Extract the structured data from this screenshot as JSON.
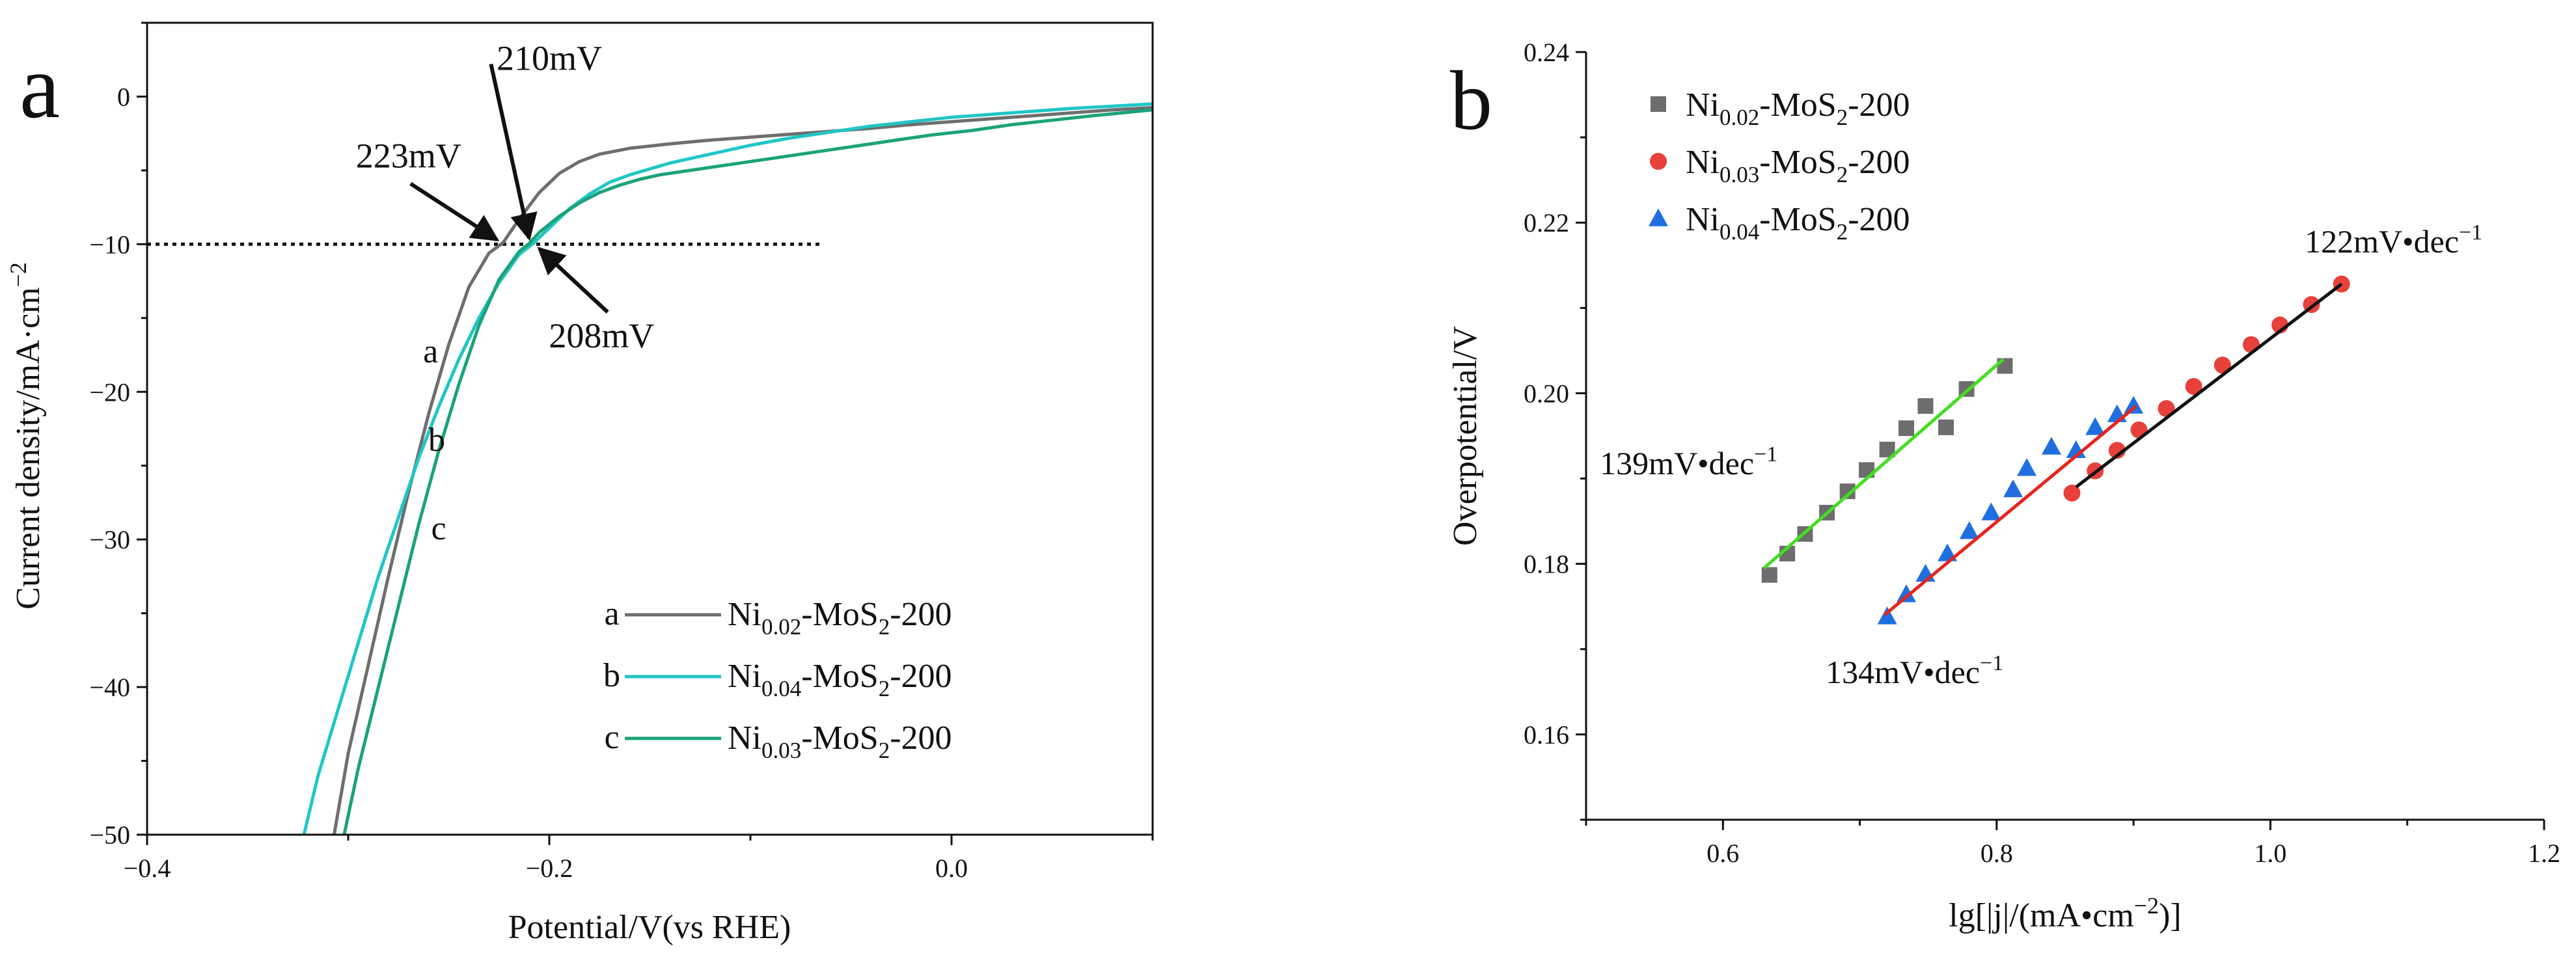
{
  "chart_data": [
    {
      "panel": "a",
      "type": "line",
      "xlabel": "Potential/V(vs RHE)",
      "ylabel": "Current density/mA·cm",
      "ylabel_sup": "−2",
      "xlim": [
        -0.4,
        0.1
      ],
      "ylim": [
        -50,
        5
      ],
      "xticks": [
        -0.4,
        -0.2,
        0.0
      ],
      "xtick_labels": [
        "−0.4",
        "−0.2",
        "0.0"
      ],
      "yticks": [
        0,
        -10,
        -20,
        -30,
        -40,
        -50
      ],
      "ytick_labels": [
        "0",
        "−10",
        "−20",
        "−30",
        "−40",
        "−50"
      ],
      "reference_line": {
        "y": -10,
        "x_start": -0.4,
        "x_end": -0.065,
        "style": "dotted"
      },
      "series": [
        {
          "id": "a",
          "name": "Ni",
          "sub": "0.02",
          "suffix": "-MoS",
          "sub2": "2",
          "tail": "-200",
          "color": "#6e6e6e",
          "x": [
            -0.307,
            -0.3,
            -0.29,
            -0.28,
            -0.27,
            -0.26,
            -0.25,
            -0.24,
            -0.23,
            -0.223,
            -0.215,
            -0.205,
            -0.195,
            -0.185,
            -0.175,
            -0.16,
            -0.14,
            -0.12,
            -0.1,
            -0.08,
            -0.06,
            -0.04,
            -0.02,
            0.0,
            0.02,
            0.04,
            0.06,
            0.08,
            0.1
          ],
          "y": [
            -50.0,
            -44.5,
            -38.5,
            -32.5,
            -26.8,
            -21.5,
            -16.8,
            -12.9,
            -10.6,
            -9.9,
            -8.3,
            -6.5,
            -5.2,
            -4.4,
            -3.9,
            -3.5,
            -3.2,
            -2.95,
            -2.75,
            -2.55,
            -2.35,
            -2.15,
            -1.9,
            -1.7,
            -1.5,
            -1.3,
            -1.1,
            -0.9,
            -0.75
          ]
        },
        {
          "id": "b",
          "name": "Ni",
          "sub": "0.04",
          "suffix": "-MoS",
          "sub2": "2",
          "tail": "-200",
          "color": "#20c6c6",
          "x": [
            -0.322,
            -0.315,
            -0.305,
            -0.295,
            -0.285,
            -0.275,
            -0.265,
            -0.255,
            -0.245,
            -0.235,
            -0.225,
            -0.215,
            -0.208,
            -0.2,
            -0.19,
            -0.18,
            -0.17,
            -0.16,
            -0.15,
            -0.14,
            -0.12,
            -0.1,
            -0.08,
            -0.06,
            -0.04,
            -0.02,
            0.0,
            0.02,
            0.04,
            0.06,
            0.08,
            0.1
          ],
          "y": [
            -50.0,
            -46.0,
            -41.5,
            -37.0,
            -32.5,
            -28.5,
            -24.5,
            -21.0,
            -17.8,
            -15.0,
            -12.6,
            -10.7,
            -9.95,
            -8.9,
            -7.6,
            -6.6,
            -5.8,
            -5.3,
            -4.9,
            -4.5,
            -3.9,
            -3.3,
            -2.8,
            -2.4,
            -2.0,
            -1.7,
            -1.4,
            -1.2,
            -1.0,
            -0.8,
            -0.65,
            -0.5
          ]
        },
        {
          "id": "c",
          "name": "Ni",
          "sub": "0.03",
          "suffix": "-MoS",
          "sub2": "2",
          "tail": "-200",
          "color": "#1aa37a",
          "x": [
            -0.302,
            -0.295,
            -0.285,
            -0.275,
            -0.265,
            -0.255,
            -0.245,
            -0.235,
            -0.225,
            -0.215,
            -0.21,
            -0.205,
            -0.195,
            -0.185,
            -0.175,
            -0.165,
            -0.155,
            -0.145,
            -0.13,
            -0.11,
            -0.09,
            -0.07,
            -0.05,
            -0.03,
            -0.01,
            0.01,
            0.03,
            0.05,
            0.07,
            0.1
          ],
          "y": [
            -50.0,
            -45.5,
            -40.0,
            -34.5,
            -29.0,
            -24.0,
            -19.5,
            -15.5,
            -12.4,
            -10.5,
            -9.95,
            -9.2,
            -8.1,
            -7.2,
            -6.5,
            -6.0,
            -5.6,
            -5.3,
            -5.0,
            -4.6,
            -4.2,
            -3.8,
            -3.4,
            -3.0,
            -2.6,
            -2.3,
            -1.9,
            -1.6,
            -1.3,
            -0.9
          ]
        }
      ],
      "curve_labels": [
        {
          "text": "a",
          "x": -0.259,
          "y": -18
        },
        {
          "text": "b",
          "x": -0.256,
          "y": -24
        },
        {
          "text": "c",
          "x": -0.255,
          "y": -30
        }
      ],
      "annotations": [
        {
          "text": "210mV",
          "x": -0.2,
          "y": 1.8,
          "arrow_from": [
            -0.229,
            2.2
          ],
          "arrow_to": [
            -0.21,
            -9.6
          ]
        },
        {
          "text": "223mV",
          "x": -0.27,
          "y": -4.8,
          "arrow_from": [
            -0.269,
            -5.9
          ],
          "arrow_to": [
            -0.226,
            -9.7
          ]
        },
        {
          "text": "208mV",
          "x": -0.174,
          "y": -17.0,
          "arrow_from": [
            -0.171,
            -14.6
          ],
          "arrow_to": [
            -0.205,
            -10.3
          ]
        }
      ],
      "panel_label": "a"
    },
    {
      "panel": "b",
      "type": "scatter",
      "xlabel": "lg[|j|/(mA•cm",
      "xlabel_sup": "−2",
      "xlabel_tail": ")]",
      "ylabel": "Overpotential/V",
      "xlim": [
        0.5,
        1.2
      ],
      "ylim": [
        0.15,
        0.24
      ],
      "xticks": [
        0.6,
        0.8,
        1.0,
        1.2
      ],
      "xtick_labels": [
        "0.6",
        "0.8",
        "1.0",
        "1.2"
      ],
      "yticks": [
        0.16,
        0.18,
        0.2,
        0.22,
        0.24
      ],
      "ytick_labels": [
        "0.16",
        "0.18",
        "0.20",
        "0.22",
        "0.24"
      ],
      "series": [
        {
          "name": "Ni",
          "sub": "0.02",
          "suffix": "-MoS",
          "sub2": "2",
          "tail": "-200",
          "marker": "square",
          "color": "#6d6d6d",
          "fit_color": "#44dd22",
          "fit": {
            "x0": 0.63,
            "y0": 0.1795,
            "x1": 0.805,
            "y1": 0.204
          },
          "x": [
            0.634,
            0.647,
            0.66,
            0.676,
            0.691,
            0.705,
            0.72,
            0.734,
            0.748,
            0.763,
            0.778,
            0.806
          ],
          "y": [
            0.1787,
            0.1812,
            0.1835,
            0.186,
            0.1885,
            0.191,
            0.1934,
            0.1959,
            0.1985,
            0.196,
            0.2005,
            0.2032
          ]
        },
        {
          "name": "Ni",
          "sub": "0.03",
          "suffix": "-MoS",
          "sub2": "2",
          "tail": "-200",
          "marker": "circle",
          "color": "#e8403a",
          "fit_color": "#111111",
          "fit": {
            "x0": 0.858,
            "y0": 0.189,
            "x1": 1.052,
            "y1": 0.2128
          },
          "x": [
            0.855,
            0.872,
            0.888,
            0.904,
            0.924,
            0.944,
            0.965,
            0.986,
            1.007,
            1.03,
            1.052
          ],
          "y": [
            0.1883,
            0.1909,
            0.1933,
            0.1957,
            0.1982,
            0.2008,
            0.2033,
            0.2057,
            0.208,
            0.2104,
            0.2128
          ]
        },
        {
          "name": "Ni",
          "sub": "0.04",
          "suffix": "-MoS",
          "sub2": "2",
          "tail": "-200",
          "marker": "triangle",
          "color": "#1f6fe0",
          "fit_color": "#e8241c",
          "fit": {
            "x0": 0.718,
            "y0": 0.174,
            "x1": 0.902,
            "y1": 0.1985
          },
          "x": [
            0.72,
            0.734,
            0.748,
            0.764,
            0.78,
            0.796,
            0.812,
            0.822,
            0.84,
            0.858,
            0.872,
            0.888,
            0.9
          ],
          "y": [
            0.1738,
            0.1764,
            0.1788,
            0.1812,
            0.1838,
            0.186,
            0.1887,
            0.1912,
            0.1937,
            0.1933,
            0.196,
            0.1975,
            0.1985
          ]
        }
      ],
      "slope_labels": [
        {
          "text": "122mV•dec",
          "sup": "−1",
          "color": "#e8241c",
          "x": 1.09,
          "y": 0.2165
        },
        {
          "text": "139mV•dec",
          "sup": "−1",
          "color": "#111111",
          "x": 0.575,
          "y": 0.1905
        },
        {
          "text": "134mV•dec",
          "sup": "−1",
          "color": "#1f4fd8",
          "x": 0.74,
          "y": 0.166
        }
      ],
      "panel_label": "b"
    }
  ]
}
